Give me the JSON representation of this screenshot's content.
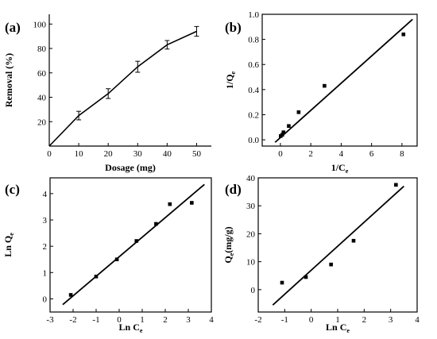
{
  "chart_data": [
    {
      "panel": "(a)",
      "type": "line",
      "xlabel": "Dosage (mg)",
      "ylabel": "Removal (%)",
      "xlim": [
        0,
        55
      ],
      "ylim": [
        0,
        108
      ],
      "xticks": [
        0,
        10,
        20,
        30,
        40,
        50
      ],
      "yticks": [
        20,
        40,
        60,
        80,
        100
      ],
      "grid": false,
      "series": [
        {
          "x": [
            0,
            10,
            20,
            30,
            40,
            50
          ],
          "y": [
            0,
            25,
            43,
            65,
            83,
            94
          ],
          "error": [
            0,
            3.5,
            4,
            4.5,
            3.5,
            4
          ],
          "markers": false
        }
      ]
    },
    {
      "panel": "(b)",
      "type": "scatter",
      "xlabel": "1/C",
      "xlabel_sub": "e",
      "ylabel": "1/Q",
      "ylabel_sub": "e",
      "xlim": [
        -1.2,
        9.0
      ],
      "ylim": [
        -0.05,
        1.0
      ],
      "xticks": [
        0,
        2,
        4,
        6,
        8
      ],
      "yticks": [
        0.0,
        0.2,
        0.4,
        0.6,
        0.8,
        1.0
      ],
      "grid": false,
      "points": {
        "x": [
          0.02,
          0.12,
          0.2,
          0.55,
          1.2,
          2.9,
          8.1
        ],
        "y": [
          0.03,
          0.04,
          0.06,
          0.11,
          0.22,
          0.43,
          0.84
        ]
      },
      "fit_line": {
        "x": [
          -0.35,
          8.7
        ],
        "y": [
          -0.02,
          0.96
        ]
      }
    },
    {
      "panel": "(c)",
      "type": "scatter",
      "xlabel": "Ln C",
      "xlabel_sub": "e",
      "ylabel": "Ln Q",
      "ylabel_sub": "e",
      "xlim": [
        -3.0,
        4.0
      ],
      "ylim": [
        -0.5,
        4.6
      ],
      "xticks": [
        -3,
        -2,
        -1,
        0,
        1,
        2,
        3,
        4
      ],
      "yticks": [
        0,
        1,
        2,
        3,
        4
      ],
      "grid": false,
      "points": {
        "x": [
          -2.1,
          -1.0,
          -0.1,
          0.75,
          1.6,
          2.2,
          3.15
        ],
        "y": [
          0.15,
          0.85,
          1.5,
          2.2,
          2.85,
          3.6,
          3.65
        ]
      },
      "fit_line": {
        "x": [
          -2.45,
          3.7
        ],
        "y": [
          -0.22,
          4.35
        ]
      }
    },
    {
      "panel": "(d)",
      "type": "scatter",
      "xlabel": "Ln C",
      "xlabel_sub": "e",
      "ylabel": "Q",
      "ylabel_sub": "e",
      "ylabel_suffix": "(mg/g)",
      "xlim": [
        -2.0,
        4.0
      ],
      "ylim": [
        -8,
        40
      ],
      "xticks": [
        -2,
        -1,
        0,
        1,
        2,
        3,
        4
      ],
      "yticks": [
        0,
        10,
        20,
        30,
        40
      ],
      "grid": false,
      "points": {
        "x": [
          -1.1,
          -0.2,
          0.75,
          1.6,
          3.2
        ],
        "y": [
          2.5,
          4.5,
          9,
          17.5,
          37.5
        ]
      },
      "fit_line": {
        "x": [
          -1.45,
          3.5
        ],
        "y": [
          -5.5,
          37
        ]
      }
    }
  ]
}
